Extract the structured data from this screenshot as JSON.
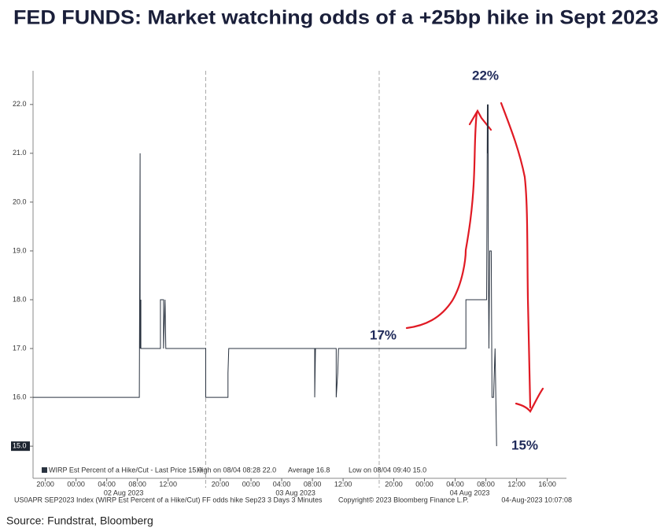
{
  "chart_data": {
    "type": "line",
    "title": "FED FUNDS: Market watching odds of a +25bp hike in Sept 2023",
    "x": [
      0,
      13.85,
      13.95,
      13.95,
      14.05,
      14.05,
      16.6,
      16.6,
      17.0,
      17.0,
      17.2,
      17.3,
      22.5,
      22.5,
      25.4,
      25.4,
      25.5,
      36.7,
      36.7,
      36.8,
      39.5,
      39.5,
      39.7,
      39.8,
      56.4,
      56.4,
      59.1,
      59.2,
      59.2,
      59.3,
      59.3,
      59.4,
      59.5,
      59.7,
      59.8,
      60.0,
      60.2,
      60.4
    ],
    "series": [
      {
        "name": "WIRP Est Percent of a Hike/Cut - Last Price 15.0",
        "color": "#2a3340",
        "values": [
          16,
          16,
          21,
          17,
          18,
          17,
          17,
          18,
          18,
          17,
          18,
          17,
          17,
          16,
          16,
          16.5,
          17,
          17,
          16,
          17,
          17,
          16,
          16.5,
          17,
          17,
          18,
          18,
          22,
          21,
          22,
          19.5,
          17,
          19,
          19,
          16,
          16,
          17,
          15
        ]
      }
    ],
    "xlim": [
      0,
      69.5
    ],
    "xticks": [
      {
        "value": 1.6,
        "label": "20:00"
      },
      {
        "value": 5.6,
        "label": "00:00"
      },
      {
        "value": 9.6,
        "label": "04:00"
      },
      {
        "value": 13.6,
        "label": "08:00"
      },
      {
        "value": 17.6,
        "label": "12:00"
      },
      {
        "value": 24.4,
        "label": "20:00"
      },
      {
        "value": 28.4,
        "label": "00:00"
      },
      {
        "value": 32.4,
        "label": "04:00"
      },
      {
        "value": 36.4,
        "label": "08:00"
      },
      {
        "value": 40.4,
        "label": "12:00"
      },
      {
        "value": 47,
        "label": "20:00"
      },
      {
        "value": 51,
        "label": "00:00"
      },
      {
        "value": 55,
        "label": "04:00"
      },
      {
        "value": 59,
        "label": "08:00"
      },
      {
        "value": 63,
        "label": "12:00"
      },
      {
        "value": 67,
        "label": "16:00"
      }
    ],
    "dates": [
      {
        "value": 11.8,
        "label": "02 Aug 2023"
      },
      {
        "value": 34.2,
        "label": "03 Aug 2023"
      },
      {
        "value": 56.9,
        "label": "04 Aug 2023"
      }
    ],
    "session_breaks": [
      22.5,
      45.1
    ],
    "ylim": [
      14.39,
      22.69
    ],
    "yticks": [
      {
        "value": 15,
        "label": "15.0"
      },
      {
        "value": 16,
        "label": "16.0"
      },
      {
        "value": 17,
        "label": "17.0"
      },
      {
        "value": 18,
        "label": "18.0"
      },
      {
        "value": 19,
        "label": "19.0"
      },
      {
        "value": 20,
        "label": "20.0"
      },
      {
        "value": 21,
        "label": "21.0"
      },
      {
        "value": 22,
        "label": "22.0"
      }
    ],
    "last_price_box": true,
    "legend_extra": [
      "High on 08/04 08:28 22.0",
      "Average 16.8",
      "Low on 08/04 09:40 15.0"
    ],
    "annotations": [
      {
        "text": "22%"
      },
      {
        "text": "17%"
      },
      {
        "text": "15%"
      }
    ],
    "footer": [
      "US0APR SEP2023 Index (WIRP Est Percent of a Hike/Cut) FF odds hike Sep23 3 Days 3 Minutes",
      "Copyright© 2023 Bloomberg Finance L.P.",
      "04-Aug-2023 10:07:08"
    ],
    "source": "Source: Fundstrat, Bloomberg"
  }
}
